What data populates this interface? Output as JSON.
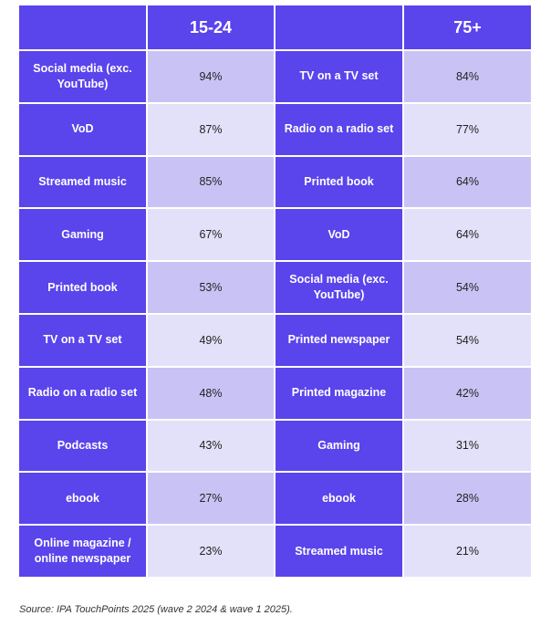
{
  "header": {
    "left_group": "15-24",
    "right_group": "75+"
  },
  "rows": [
    {
      "left_label": "Social media (exc. YouTube)",
      "left_value": "94%",
      "right_label": "TV on a TV set",
      "right_value": "84%"
    },
    {
      "left_label": "VoD",
      "left_value": "87%",
      "right_label": "Radio on a radio set",
      "right_value": "77%"
    },
    {
      "left_label": "Streamed music",
      "left_value": "85%",
      "right_label": "Printed book",
      "right_value": "64%"
    },
    {
      "left_label": "Gaming",
      "left_value": "67%",
      "right_label": "VoD",
      "right_value": "64%"
    },
    {
      "left_label": "Printed book",
      "left_value": "53%",
      "right_label": "Social media (exc. YouTube)",
      "right_value": "54%"
    },
    {
      "left_label": "TV on a TV set",
      "left_value": "49%",
      "right_label": "Printed newspaper",
      "right_value": "54%"
    },
    {
      "left_label": "Radio on a radio set",
      "left_value": "48%",
      "right_label": "Printed magazine",
      "right_value": "42%"
    },
    {
      "left_label": "Podcasts",
      "left_value": "43%",
      "right_label": "Gaming",
      "right_value": "31%"
    },
    {
      "left_label": "ebook",
      "left_value": "27%",
      "right_label": "ebook",
      "right_value": "28%"
    },
    {
      "left_label": "Online magazine / online newspaper",
      "left_value": "23%",
      "right_label": "Streamed music",
      "right_value": "21%"
    }
  ],
  "source": "Source: IPA TouchPoints 2025 (wave 2 2024 & wave 1 2025).",
  "colors": {
    "label_bg": "#5a44ec",
    "value_bg_dark": "#c9c3f5",
    "value_bg_light": "#e3e0f9"
  }
}
